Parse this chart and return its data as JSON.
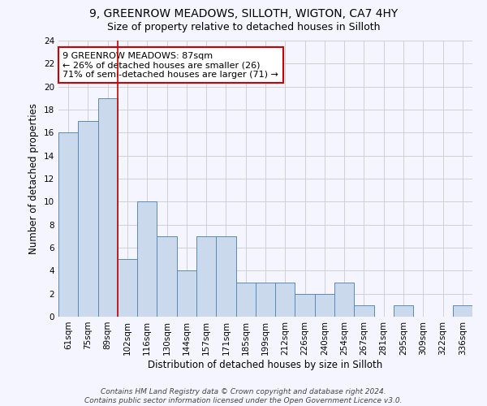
{
  "title_line1": "9, GREENROW MEADOWS, SILLOTH, WIGTON, CA7 4HY",
  "title_line2": "Size of property relative to detached houses in Silloth",
  "xlabel": "Distribution of detached houses by size in Silloth",
  "ylabel": "Number of detached properties",
  "categories": [
    "61sqm",
    "75sqm",
    "89sqm",
    "102sqm",
    "116sqm",
    "130sqm",
    "144sqm",
    "157sqm",
    "171sqm",
    "185sqm",
    "199sqm",
    "212sqm",
    "226sqm",
    "240sqm",
    "254sqm",
    "267sqm",
    "281sqm",
    "295sqm",
    "309sqm",
    "322sqm",
    "336sqm"
  ],
  "values": [
    16,
    17,
    19,
    5,
    10,
    7,
    4,
    7,
    7,
    3,
    3,
    3,
    2,
    2,
    3,
    1,
    0,
    1,
    0,
    0,
    1
  ],
  "bar_color": "#cad9ec",
  "bar_edge_color": "#5a88b5",
  "highlight_index": 2,
  "highlight_line_color": "#cc0000",
  "annotation_line1": "9 GREENROW MEADOWS: 87sqm",
  "annotation_line2": "← 26% of detached houses are smaller (26)",
  "annotation_line3": "71% of semi-detached houses are larger (71) →",
  "annotation_box_color": "#ffffff",
  "annotation_box_edge": "#cc0000",
  "ylim": [
    0,
    24
  ],
  "yticks": [
    0,
    2,
    4,
    6,
    8,
    10,
    12,
    14,
    16,
    18,
    20,
    22,
    24
  ],
  "grid_color": "#d0d0d0",
  "background_color": "#f5f5ff",
  "footer_line1": "Contains HM Land Registry data © Crown copyright and database right 2024.",
  "footer_line2": "Contains public sector information licensed under the Open Government Licence v3.0.",
  "title_fontsize": 10,
  "subtitle_fontsize": 9,
  "axis_label_fontsize": 8.5,
  "tick_fontsize": 7.5,
  "annotation_fontsize": 8,
  "footer_fontsize": 6.5
}
